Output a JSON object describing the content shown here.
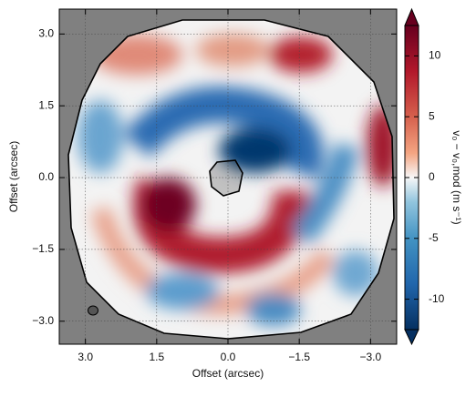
{
  "chart_data": {
    "type": "image",
    "xlabel": "Offset (arcsec)",
    "ylabel": "Offset (arcsec)",
    "xlim": [
      3.55,
      -3.55
    ],
    "ylim": [
      -3.48,
      3.52
    ],
    "xticks": [
      {
        "value": 3,
        "label": "3.0"
      },
      {
        "value": 1.5,
        "label": "1.5"
      },
      {
        "value": 0,
        "label": "0.0"
      },
      {
        "value": -1.5,
        "label": "−1.5"
      },
      {
        "value": -3,
        "label": "−3.0"
      }
    ],
    "yticks": [
      {
        "value": 3,
        "label": "3.0"
      },
      {
        "value": 1.5,
        "label": "1.5"
      },
      {
        "value": 0,
        "label": "0.0"
      },
      {
        "value": -1.5,
        "label": "−1.5"
      },
      {
        "value": -3,
        "label": "−3.0"
      }
    ],
    "grid": true,
    "colorbar": {
      "label": "v₀ − v₀,mod  (m s⁻¹)",
      "lim": [
        -12.5,
        12.5
      ],
      "ticks": [
        10,
        5,
        0,
        -5,
        -10
      ]
    }
  }
}
